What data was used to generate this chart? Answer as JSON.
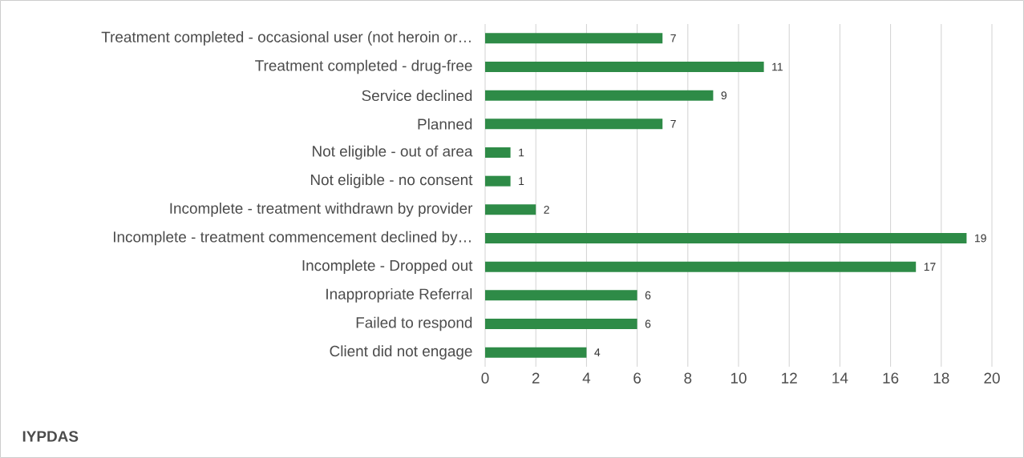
{
  "chart_data": {
    "type": "bar",
    "orientation": "horizontal",
    "categories": [
      "Treatment completed - occasional user (not heroin or…",
      "Treatment completed - drug-free",
      "Service declined",
      "Planned",
      "Not eligible - out of area",
      "Not eligible - no consent",
      "Incomplete - treatment withdrawn by provider",
      "Incomplete - treatment commencement declined by…",
      "Incomplete - Dropped out",
      "Inappropriate Referral",
      "Failed to respond",
      "Client did not engage"
    ],
    "values": [
      7,
      11,
      9,
      7,
      1,
      1,
      2,
      19,
      17,
      6,
      6,
      4
    ],
    "color": "#2e8b47",
    "xlim": [
      0,
      20
    ],
    "xticks": [
      0,
      2,
      4,
      6,
      8,
      10,
      12,
      14,
      16,
      18,
      20
    ],
    "grid": "x",
    "data_labels": true,
    "annotations": [
      "IYPDAS"
    ]
  }
}
